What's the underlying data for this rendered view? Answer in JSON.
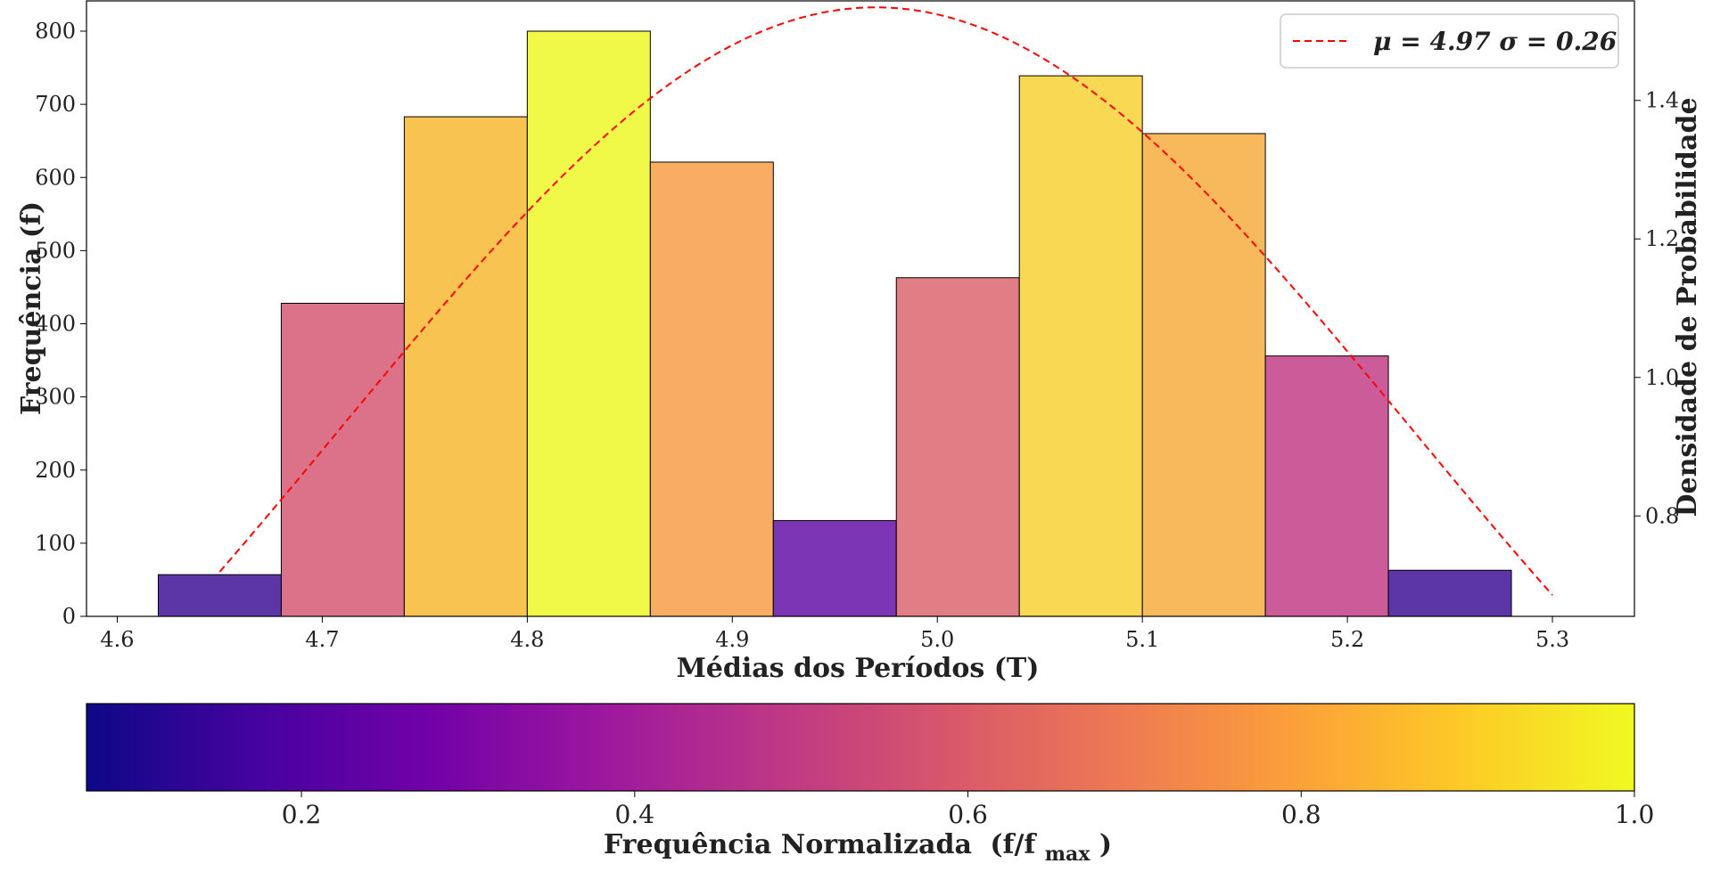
{
  "chart_data": {
    "type": "bar",
    "title": "",
    "xlabel": "Médias dos Períodos (T)",
    "ylabel": "Frequência (f)",
    "y2label": "Densidade de Probabilidade",
    "xlim": [
      4.585,
      5.34
    ],
    "ylim": [
      0,
      800
    ],
    "y2lim": [
      0.655,
      1.545
    ],
    "xticks": [
      "4.6",
      "4.7",
      "4.8",
      "4.9",
      "5.0",
      "5.1",
      "5.2",
      "5.3"
    ],
    "xtick_values": [
      4.6,
      4.7,
      4.8,
      4.9,
      5.0,
      5.1,
      5.2,
      5.3
    ],
    "yticks": [
      "0",
      "100",
      "200",
      "300",
      "400",
      "500",
      "600",
      "700",
      "800"
    ],
    "ytick_values": [
      0,
      100,
      200,
      300,
      400,
      500,
      600,
      700,
      800
    ],
    "y2ticks": [
      "0.8",
      "1.0",
      "1.2",
      "1.4"
    ],
    "y2tick_values": [
      0.8,
      1.0,
      1.2,
      1.4
    ],
    "bins": [
      {
        "left": 4.62,
        "right": 4.68,
        "count": 57,
        "color": "#5c35a7"
      },
      {
        "left": 4.68,
        "right": 4.74,
        "count": 428,
        "color": "#db7289"
      },
      {
        "left": 4.74,
        "right": 4.8,
        "count": 683,
        "color": "#f9c352"
      },
      {
        "left": 4.8,
        "right": 4.86,
        "count": 800,
        "color": "#f0f948"
      },
      {
        "left": 4.86,
        "right": 4.92,
        "count": 621,
        "color": "#f8ad62"
      },
      {
        "left": 4.92,
        "right": 4.98,
        "count": 131,
        "color": "#7c35b4"
      },
      {
        "left": 4.98,
        "right": 5.04,
        "count": 463,
        "color": "#e17d85"
      },
      {
        "left": 5.04,
        "right": 5.1,
        "count": 739,
        "color": "#f9d854"
      },
      {
        "left": 5.1,
        "right": 5.16,
        "count": 660,
        "color": "#f8b95c"
      },
      {
        "left": 5.16,
        "right": 5.22,
        "count": 356,
        "color": "#cc5b99"
      },
      {
        "left": 5.22,
        "right": 5.28,
        "count": 63,
        "color": "#5c35a7"
      }
    ],
    "fit_curve": {
      "name": "μ = 4.97 σ = 0.26",
      "mu": 4.97,
      "sigma": 0.26,
      "x_start": 4.65,
      "x_end": 5.3,
      "color": "#ff0000",
      "style": "dashed"
    },
    "legend_position": "top-right",
    "grid": false,
    "colorbar": {
      "label": "Frequência Normalizada",
      "label_math": "(f/f",
      "label_sub": "max",
      "label_close": ")",
      "range": [
        0.071,
        1.0
      ],
      "ticks": [
        "0.2",
        "0.4",
        "0.6",
        "0.8",
        "1.0"
      ],
      "tick_values": [
        0.2,
        0.4,
        0.6,
        0.8,
        1.0
      ],
      "colormap": "plasma",
      "colormap_stops": [
        "#0d0887",
        "#46039f",
        "#7201a8",
        "#9c179e",
        "#bd3786",
        "#d8576b",
        "#ed7953",
        "#fb9f3a",
        "#fdca26",
        "#f0f921"
      ]
    }
  }
}
